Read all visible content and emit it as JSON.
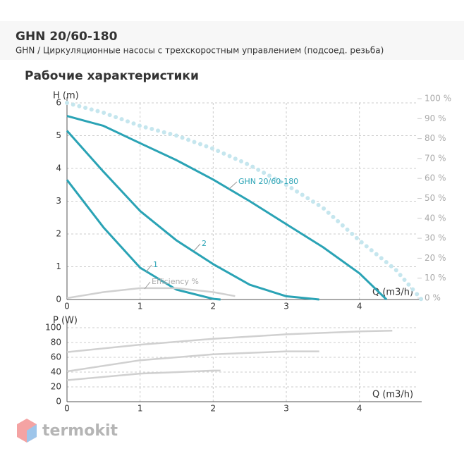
{
  "header": {
    "title": "GHN 20/60-180",
    "subtitle": "GHN / Циркуляционные насосы с трехскоростным управлением (подсоед. резьба)",
    "section": "Рабочие характеристики"
  },
  "logo": "termokit",
  "chart_data": [
    {
      "type": "line",
      "xlabel": "Q (m3/h)",
      "ylabel": "H (m)",
      "xlim": [
        0,
        4.9
      ],
      "xticks": [
        0,
        1,
        2,
        3,
        4
      ],
      "ylim": [
        0,
        6
      ],
      "yticks": [
        0,
        1,
        2,
        3,
        4,
        5,
        6
      ],
      "y2lim": [
        0,
        100
      ],
      "y2ticks": [
        {
          "value": 0,
          "label": "0 %"
        },
        {
          "value": 10,
          "label": "10 %"
        },
        {
          "value": 20,
          "label": "20 %"
        },
        {
          "value": 30,
          "label": "30 %"
        },
        {
          "value": 40,
          "label": "40 %"
        },
        {
          "value": 50,
          "label": "50 %"
        },
        {
          "value": 60,
          "label": "60 %"
        },
        {
          "value": 70,
          "label": "70 %"
        },
        {
          "value": 80,
          "label": "80 %"
        },
        {
          "value": 90,
          "label": "90 %"
        },
        {
          "value": 100,
          "label": "100 %"
        }
      ],
      "grid": true,
      "series": [
        {
          "color": "#c5e6ee",
          "style": "dotted",
          "x": [
            0,
            0.5,
            1,
            1.5,
            2,
            2.5,
            3,
            3.5,
            4,
            4.5,
            4.85
          ],
          "values": [
            6,
            5.7,
            5.3,
            5,
            4.6,
            4.1,
            3.5,
            2.8,
            1.8,
            0.9,
            0
          ]
        },
        {
          "name": "GHN 20/60-180",
          "color": "#2aa3b5",
          "x": [
            0,
            0.5,
            1,
            1.5,
            2,
            2.5,
            3,
            3.5,
            4,
            4.37
          ],
          "values": [
            5.6,
            5.3,
            4.77,
            4.25,
            3.66,
            3.0,
            2.3,
            1.6,
            0.8,
            0
          ]
        },
        {
          "name": "2",
          "color": "#2aa3b5",
          "x": [
            0,
            0.5,
            1,
            1.5,
            2,
            2.5,
            3,
            3.45
          ],
          "values": [
            5.15,
            3.9,
            2.7,
            1.8,
            1.08,
            0.45,
            0.1,
            0
          ]
        },
        {
          "name": "1",
          "color": "#2aa3b5",
          "x": [
            0,
            0.5,
            1,
            1.5,
            2,
            2.1
          ],
          "values": [
            3.65,
            2.2,
            0.97,
            0.3,
            0.02,
            0
          ]
        },
        {
          "name": "Efficiency %",
          "color": "#d0d0d0",
          "axis": "y2",
          "x": [
            0,
            0.5,
            1,
            1.5,
            2,
            2.3
          ],
          "values": [
            0,
            3,
            5,
            5,
            3,
            1
          ]
        }
      ]
    },
    {
      "type": "line",
      "xlabel": "Q (m3/h)",
      "ylabel": "P (W)",
      "xlim": [
        0,
        4.9
      ],
      "xticks": [
        0,
        1,
        2,
        3,
        4
      ],
      "ylim": [
        0,
        100
      ],
      "yticks": [
        0,
        20,
        40,
        60,
        80,
        100
      ],
      "grid": true,
      "series": [
        {
          "color": "#d0d0d0",
          "x": [
            0,
            1,
            2,
            3,
            4,
            4.45
          ],
          "values": [
            67,
            77,
            85,
            91,
            95,
            96
          ]
        },
        {
          "color": "#d0d0d0",
          "x": [
            0,
            1,
            2,
            3,
            3.45
          ],
          "values": [
            41,
            56,
            64,
            68,
            68
          ]
        },
        {
          "color": "#d0d0d0",
          "x": [
            0,
            1,
            2,
            2.1
          ],
          "values": [
            29,
            38,
            42,
            42
          ]
        }
      ]
    }
  ]
}
